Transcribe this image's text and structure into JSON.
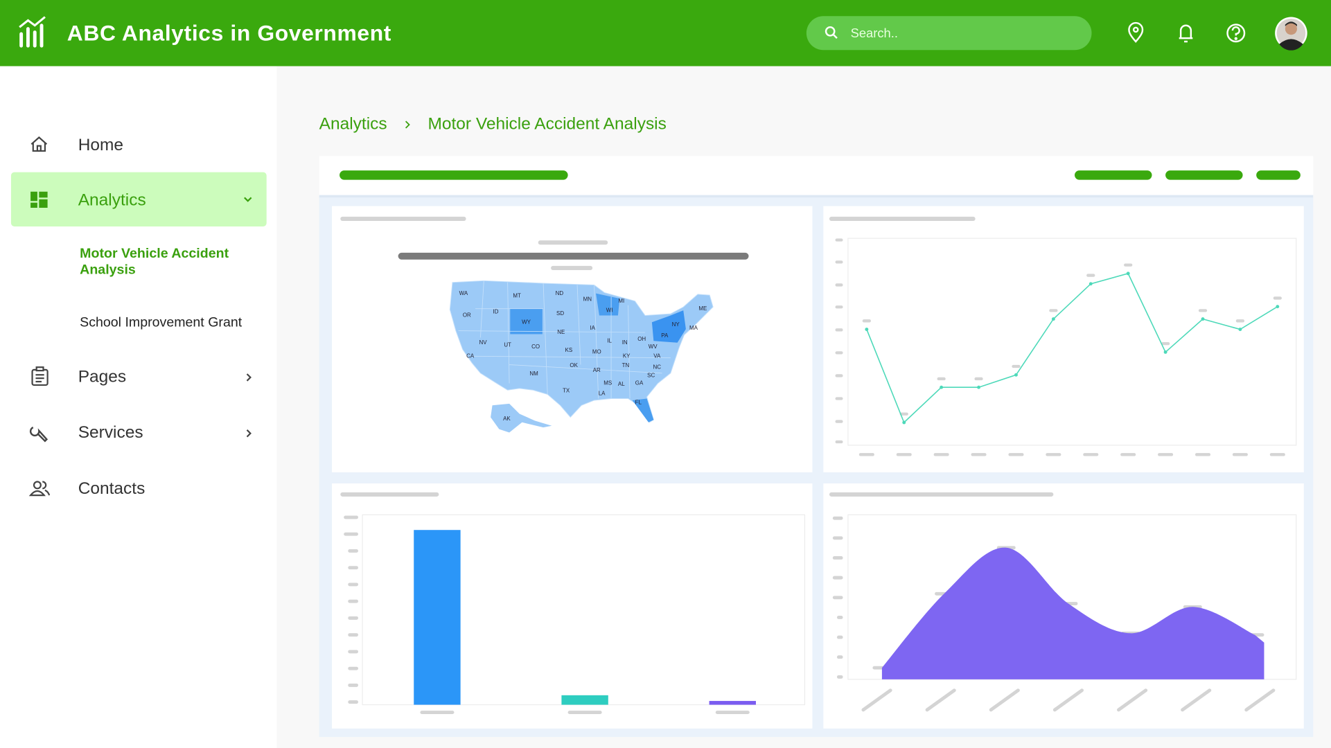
{
  "header": {
    "title": "ABC Analytics in Government",
    "search_placeholder": "Search.."
  },
  "sidebar": {
    "items": [
      {
        "label": "Home"
      },
      {
        "label": "Analytics",
        "children": [
          "Motor Vehicle Accident Analysis",
          "School Improvement Grant"
        ]
      },
      {
        "label": "Pages"
      },
      {
        "label": "Services"
      },
      {
        "label": "Contacts"
      }
    ]
  },
  "breadcrumb": [
    "Analytics",
    "Motor Vehicle Accident Analysis"
  ],
  "map": {
    "states": [
      "WA",
      "MT",
      "ND",
      "MN",
      "MI",
      "ME",
      "OR",
      "ID",
      "WY",
      "SD",
      "WI",
      "NY",
      "MA",
      "NE",
      "IA",
      "PA",
      "NV",
      "UT",
      "CO",
      "KS",
      "MO",
      "IL",
      "IN",
      "OH",
      "WV",
      "VA",
      "CA",
      "KY",
      "OK",
      "TN",
      "NC",
      "AR",
      "NM",
      "SC",
      "MS",
      "AL",
      "GA",
      "TX",
      "LA",
      "FL",
      "AK"
    ]
  },
  "charts": [
    {
      "type": "line",
      "color": "#4dd9b9",
      "values": [
        56,
        11,
        28,
        28,
        34,
        61,
        78,
        83,
        45,
        61,
        56,
        67
      ],
      "ylim": [
        0,
        100
      ]
    },
    {
      "type": "bar",
      "colors": [
        "#2b96f8",
        "#2ecdc0",
        "#7b5cf0"
      ],
      "values": [
        92,
        5,
        2
      ],
      "ylim": [
        0,
        100
      ]
    },
    {
      "type": "area",
      "color": "#7e66f2",
      "values": [
        7,
        52,
        80,
        46,
        28,
        44,
        27
      ],
      "ylim": [
        0,
        100
      ]
    }
  ]
}
